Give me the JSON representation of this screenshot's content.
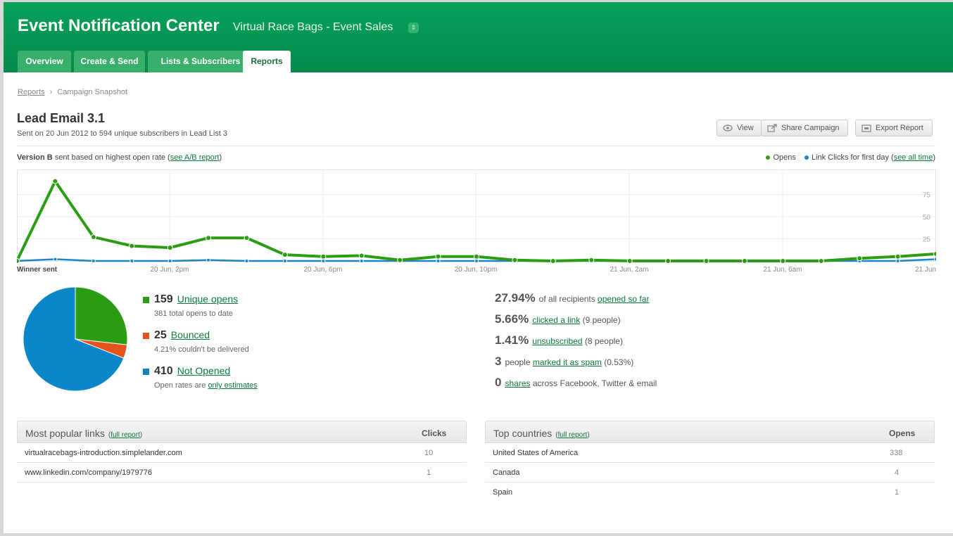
{
  "header": {
    "app_title": "Event Notification Center",
    "client_name": "Virtual Race Bags - Event Sales",
    "client_menu_icon": "up-down-arrows-icon",
    "tabs": [
      {
        "label": "Overview",
        "active": false
      },
      {
        "label": "Create & Send",
        "active": false
      },
      {
        "label": "Lists & Subscribers",
        "active": false
      },
      {
        "label": "Reports",
        "active": true
      }
    ]
  },
  "breadcrumb": {
    "root": "Reports",
    "separator": "›",
    "current": "Campaign Snapshot"
  },
  "campaign": {
    "title": "Lead Email 3.1",
    "meta": "Sent on 20 Jun 2012 to 594 unique subscribers in Lead List 3"
  },
  "actions": {
    "view": "View",
    "share": "Share Campaign",
    "export": "Export Report"
  },
  "version_note": {
    "bold": "Version B",
    "text": "sent based on highest open rate (",
    "link": "see A/B report",
    "close": ")"
  },
  "legend": {
    "opens": "Opens",
    "clicks": "Link Clicks for first day (",
    "link": "see all time",
    "close": ")"
  },
  "colors": {
    "brand_green": "#07a25a",
    "opens_green": "#2a9d12",
    "clicks_blue": "#1a86c8",
    "bounced_orange": "#e4531b",
    "not_opened_blue": "#0b87c9"
  },
  "chart_data": {
    "type": "line",
    "y_ticks": [
      "75",
      "50",
      "25"
    ],
    "ylim": [
      0,
      100
    ],
    "x_labels": [
      "Winner sent",
      "20 Jun, 2pm",
      "20 Jun, 6pm",
      "20 Jun, 10pm",
      "21 Jun, 2am",
      "21 Jun, 6am",
      "21 Jun"
    ],
    "grid": true,
    "series": [
      {
        "name": "Opens",
        "values": [
          0,
          90,
          27,
          17,
          15,
          26,
          26,
          7,
          5,
          6,
          1,
          5,
          5,
          1,
          0,
          1,
          0,
          0,
          0,
          0,
          0,
          0,
          3,
          5,
          8
        ]
      },
      {
        "name": "Link Clicks for first day",
        "values": [
          0,
          2,
          0,
          0,
          0,
          1,
          0,
          0,
          0,
          0,
          0,
          0,
          0,
          0,
          0,
          0,
          0,
          0,
          0,
          0,
          0,
          0,
          0,
          0,
          2
        ]
      }
    ]
  },
  "pie": {
    "slices": [
      {
        "label": "Unique opens",
        "value": 159,
        "color": "#2a9d12"
      },
      {
        "label": "Bounced",
        "value": 25,
        "color": "#e4531b"
      },
      {
        "label": "Not Opened",
        "value": 410,
        "color": "#0b87c9"
      }
    ]
  },
  "stats": {
    "opens": {
      "count": "159",
      "label": "Unique opens",
      "sub": "381 total opens to date"
    },
    "bounced": {
      "count": "25",
      "label": "Bounced",
      "sub": "4.21% couldn't be delivered"
    },
    "not_opened": {
      "count": "410",
      "label": "Not Opened",
      "sub_text": "Open rates are ",
      "sub_link": "only estimates"
    }
  },
  "metrics": [
    {
      "num": "27.94%",
      "pre": "of all recipients ",
      "link": "opened so far",
      "post": ""
    },
    {
      "num": "5.66%",
      "pre": "",
      "link": "clicked a link",
      "post": " (9 people)"
    },
    {
      "num": "1.41%",
      "pre": "",
      "link": "unsubscribed",
      "post": " (8 people)"
    },
    {
      "num": "3",
      "pre": "people ",
      "link": "marked it as spam",
      "post": " (0.53%)"
    },
    {
      "num": "0",
      "pre": "",
      "link": "shares",
      "post": " across Facebook, Twitter & email"
    }
  ],
  "links_panel": {
    "title": "Most popular links",
    "open": "(",
    "link": "full report",
    "close": ")",
    "col": "Clicks",
    "rows": [
      {
        "label": "virtualracebags-introduction.simplelander.com",
        "value": "10"
      },
      {
        "label": "www.linkedin.com/company/1979776",
        "value": "1"
      }
    ]
  },
  "countries_panel": {
    "title": "Top countries",
    "open": "(",
    "link": "full report",
    "close": ")",
    "col": "Opens",
    "rows": [
      {
        "label": "United States of America",
        "value": "338"
      },
      {
        "label": "Canada",
        "value": "4"
      },
      {
        "label": "Spain",
        "value": "1"
      }
    ]
  }
}
